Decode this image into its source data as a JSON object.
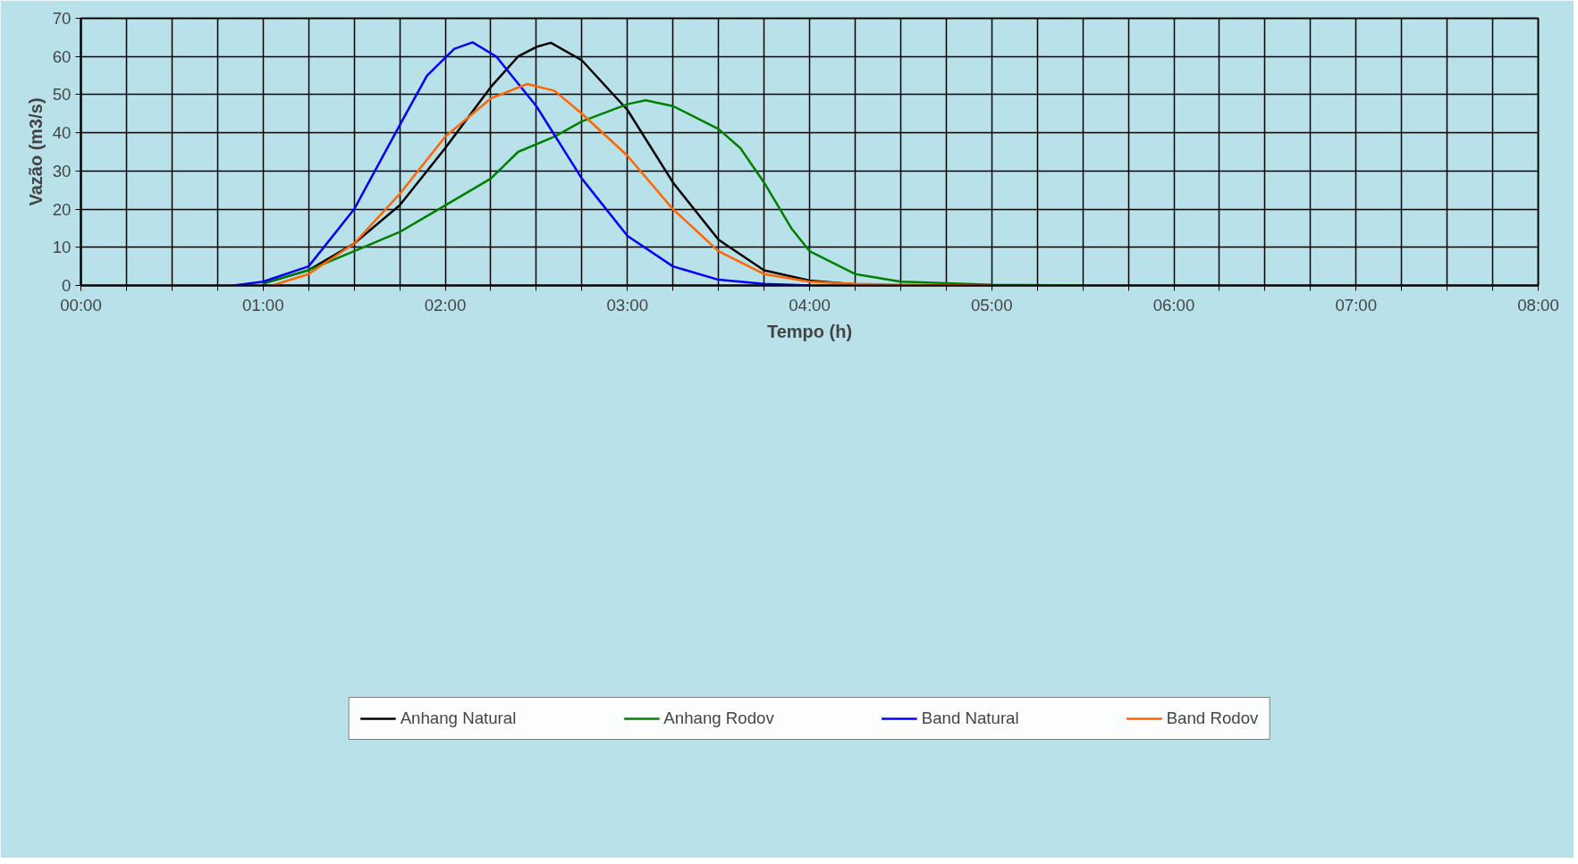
{
  "chart_data": {
    "type": "line",
    "xlabel": "Tempo (h)",
    "ylabel": "Vazão (m3/s)",
    "xlim": [
      0,
      8
    ],
    "ylim": [
      0,
      70
    ],
    "xticks": [
      {
        "value": 0,
        "label": "00:00"
      },
      {
        "value": 0.25,
        "label": null
      },
      {
        "value": 0.5,
        "label": null
      },
      {
        "value": 0.75,
        "label": null
      },
      {
        "value": 1,
        "label": "01:00"
      },
      {
        "value": 1.25,
        "label": null
      },
      {
        "value": 1.5,
        "label": null
      },
      {
        "value": 1.75,
        "label": null
      },
      {
        "value": 2,
        "label": "02:00"
      },
      {
        "value": 2.25,
        "label": null
      },
      {
        "value": 2.5,
        "label": null
      },
      {
        "value": 2.75,
        "label": null
      },
      {
        "value": 3,
        "label": "03:00"
      },
      {
        "value": 3.25,
        "label": null
      },
      {
        "value": 3.5,
        "label": null
      },
      {
        "value": 3.75,
        "label": null
      },
      {
        "value": 4,
        "label": "04:00"
      },
      {
        "value": 4.25,
        "label": null
      },
      {
        "value": 4.5,
        "label": null
      },
      {
        "value": 4.75,
        "label": null
      },
      {
        "value": 5,
        "label": "05:00"
      },
      {
        "value": 5.25,
        "label": null
      },
      {
        "value": 5.5,
        "label": null
      },
      {
        "value": 5.75,
        "label": null
      },
      {
        "value": 6,
        "label": "06:00"
      },
      {
        "value": 6.25,
        "label": null
      },
      {
        "value": 6.5,
        "label": null
      },
      {
        "value": 6.75,
        "label": null
      },
      {
        "value": 7,
        "label": "07:00"
      },
      {
        "value": 7.25,
        "label": null
      },
      {
        "value": 7.5,
        "label": null
      },
      {
        "value": 7.75,
        "label": null
      },
      {
        "value": 8,
        "label": "08:00"
      }
    ],
    "yticks": [
      0,
      10,
      20,
      30,
      40,
      50,
      60,
      70
    ],
    "grid": true,
    "legend": "bottom",
    "marker": "none",
    "line_style": "solid",
    "series": [
      {
        "name": "Anhang Natural",
        "color": "#000000",
        "x": [
          1.0,
          1.25,
          1.5,
          1.75,
          2.0,
          2.25,
          2.4,
          2.5,
          2.58,
          2.75,
          3.0,
          3.25,
          3.5,
          3.75,
          4.0,
          4.25,
          4.5
        ],
        "values": [
          0.5,
          4,
          11,
          21,
          36,
          52,
          60,
          62.5,
          63.6,
          59,
          46,
          27,
          12,
          4,
          1.3,
          0.3,
          0
        ]
      },
      {
        "name": "Anhang Rodov",
        "color": "#008000",
        "x": [
          1.0,
          1.25,
          1.5,
          1.75,
          2.0,
          2.25,
          2.4,
          2.6,
          2.75,
          3.0,
          3.1,
          3.25,
          3.5,
          3.62,
          3.75,
          3.9,
          4.0,
          4.25,
          4.5,
          5.0,
          5.5
        ],
        "values": [
          0.5,
          4,
          9,
          14,
          21,
          28,
          35,
          39,
          43,
          47.5,
          48.5,
          47,
          41,
          36,
          27,
          15,
          9,
          3,
          1,
          0.2,
          0
        ]
      },
      {
        "name": "Band Natural",
        "color": "#0000ff",
        "x": [
          0.84,
          1.0,
          1.25,
          1.5,
          1.75,
          1.9,
          2.05,
          2.15,
          2.28,
          2.5,
          2.75,
          3.0,
          3.25,
          3.5,
          3.75,
          4.0
        ],
        "values": [
          0,
          1,
          5,
          20,
          42,
          55,
          62,
          63.7,
          60,
          47,
          28,
          13,
          5,
          1.5,
          0.4,
          0
        ]
      },
      {
        "name": "Band Rodov",
        "color": "#ff6600",
        "x": [
          1.05,
          1.25,
          1.5,
          1.75,
          2.0,
          2.25,
          2.45,
          2.6,
          2.75,
          3.0,
          3.25,
          3.5,
          3.75,
          4.0,
          4.25,
          4.5,
          5.0
        ],
        "values": [
          0,
          3,
          11,
          24,
          39,
          49,
          52.8,
          51,
          45,
          34,
          20,
          9,
          3,
          1,
          0.4,
          0.2,
          0
        ]
      }
    ]
  }
}
